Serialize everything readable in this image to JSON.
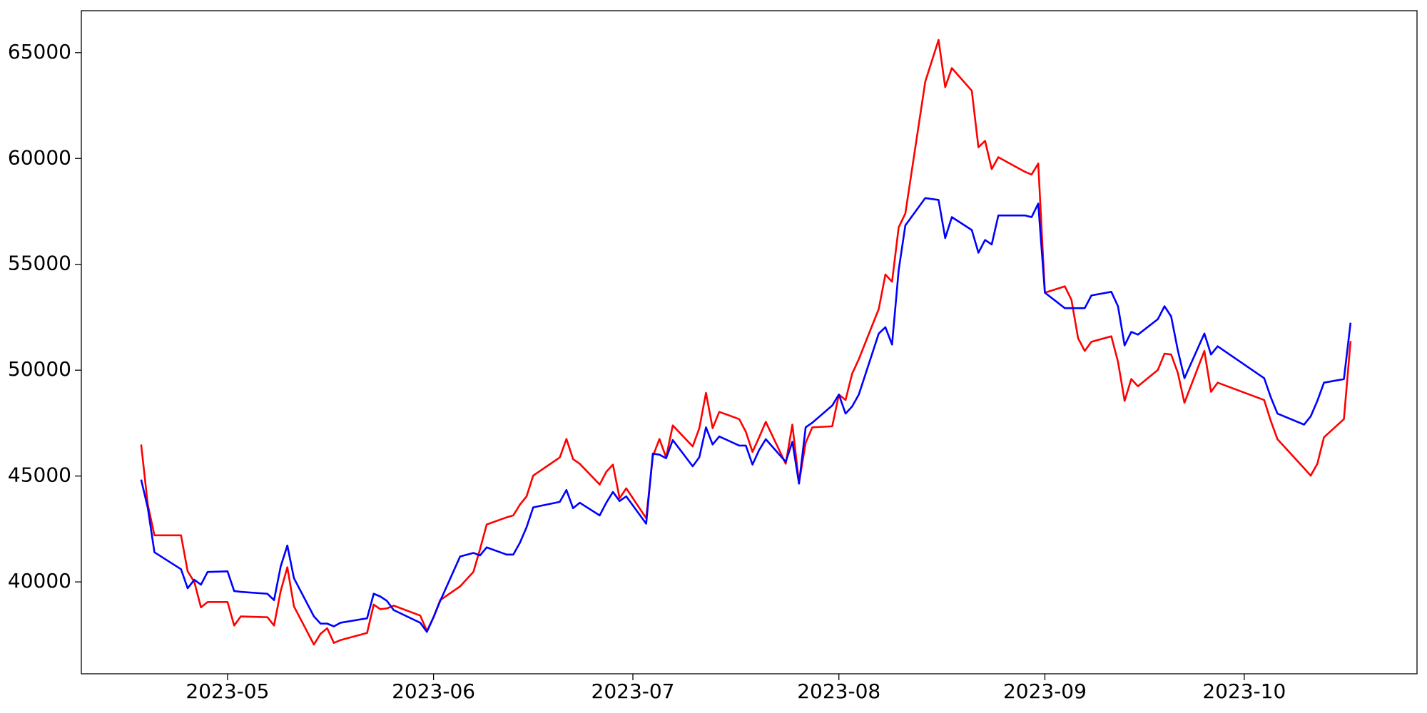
{
  "chart_data": {
    "type": "line",
    "x": [
      "2023-04-18",
      "2023-04-19",
      "2023-04-20",
      "2023-04-24",
      "2023-04-25",
      "2023-04-26",
      "2023-04-27",
      "2023-04-28",
      "2023-05-01",
      "2023-05-02",
      "2023-05-03",
      "2023-05-07",
      "2023-05-08",
      "2023-05-09",
      "2023-05-10",
      "2023-05-11",
      "2023-05-14",
      "2023-05-15",
      "2023-05-16",
      "2023-05-17",
      "2023-05-18",
      "2023-05-22",
      "2023-05-23",
      "2023-05-24",
      "2023-05-25",
      "2023-05-26",
      "2023-05-30",
      "2023-05-31",
      "2023-06-01",
      "2023-06-02",
      "2023-06-05",
      "2023-06-07",
      "2023-06-08",
      "2023-06-09",
      "2023-06-12",
      "2023-06-13",
      "2023-06-14",
      "2023-06-15",
      "2023-06-16",
      "2023-06-20",
      "2023-06-21",
      "2023-06-22",
      "2023-06-23",
      "2023-06-26",
      "2023-06-27",
      "2023-06-28",
      "2023-06-29",
      "2023-06-30",
      "2023-07-03",
      "2023-07-04",
      "2023-07-05",
      "2023-07-06",
      "2023-07-07",
      "2023-07-10",
      "2023-07-11",
      "2023-07-12",
      "2023-07-13",
      "2023-07-14",
      "2023-07-17",
      "2023-07-18",
      "2023-07-19",
      "2023-07-20",
      "2023-07-21",
      "2023-07-24",
      "2023-07-25",
      "2023-07-26",
      "2023-07-27",
      "2023-07-28",
      "2023-07-31",
      "2023-08-01",
      "2023-08-02",
      "2023-08-03",
      "2023-08-04",
      "2023-08-07",
      "2023-08-08",
      "2023-08-09",
      "2023-08-10",
      "2023-08-11",
      "2023-08-14",
      "2023-08-16",
      "2023-08-17",
      "2023-08-18",
      "2023-08-21",
      "2023-08-22",
      "2023-08-23",
      "2023-08-24",
      "2023-08-25",
      "2023-08-29",
      "2023-08-30",
      "2023-08-31",
      "2023-09-01",
      "2023-09-04",
      "2023-09-05",
      "2023-09-06",
      "2023-09-07",
      "2023-09-08",
      "2023-09-11",
      "2023-09-12",
      "2023-09-13",
      "2023-09-14",
      "2023-09-15",
      "2023-09-18",
      "2023-09-19",
      "2023-09-20",
      "2023-09-21",
      "2023-09-22",
      "2023-09-25",
      "2023-09-26",
      "2023-09-27",
      "2023-10-04",
      "2023-10-05",
      "2023-10-06",
      "2023-10-10",
      "2023-10-11",
      "2023-10-12",
      "2023-10-13",
      "2023-10-16",
      "2023-10-17"
    ],
    "series": [
      {
        "color": "red",
        "values": [
          46490,
          43650,
          42200,
          42200,
          40500,
          40000,
          38800,
          39050,
          39050,
          37940,
          38370,
          38330,
          37940,
          39570,
          40690,
          38840,
          37040,
          37550,
          37810,
          37120,
          37250,
          37590,
          38930,
          38710,
          38750,
          38880,
          38410,
          37680,
          38330,
          39140,
          39790,
          40470,
          41550,
          42710,
          43050,
          43140,
          43650,
          44040,
          45020,
          45880,
          46750,
          45800,
          45580,
          44600,
          45200,
          45540,
          43950,
          44420,
          43010,
          45930,
          46750,
          45880,
          47390,
          46400,
          47260,
          48930,
          47260,
          48030,
          47690,
          47090,
          46140,
          46830,
          47560,
          45580,
          47430,
          44680,
          46570,
          47300,
          47350,
          48850,
          48590,
          49840,
          50520,
          52890,
          54520,
          54180,
          56750,
          57400,
          63630,
          65600,
          63370,
          64270,
          63200,
          60530,
          60830,
          59500,
          60060,
          59370,
          59240,
          59760,
          53660,
          53960,
          53320,
          51510,
          50910,
          51340,
          51600,
          50400,
          48550,
          49580,
          49240,
          50010,
          50780,
          50740,
          49880,
          48460,
          50910,
          48980,
          49410,
          48590,
          47600,
          46740,
          45370,
          45020,
          45580,
          46830,
          47690,
          51380
        ]
      },
      {
        "color": "blue",
        "values": [
          44830,
          43500,
          41400,
          40600,
          39700,
          40100,
          39870,
          40470,
          40500,
          39570,
          39530,
          39440,
          39140,
          40730,
          41720,
          40170,
          38370,
          38030,
          38030,
          37900,
          38070,
          38280,
          39440,
          39310,
          39100,
          38670,
          38070,
          37640,
          38330,
          39100,
          41200,
          41370,
          41250,
          41630,
          41290,
          41290,
          41850,
          42580,
          43520,
          43780,
          44340,
          43480,
          43740,
          43140,
          43740,
          44250,
          43820,
          44040,
          42750,
          46060,
          46010,
          45840,
          46700,
          45460,
          45890,
          47300,
          46490,
          46870,
          46440,
          46440,
          45540,
          46230,
          46740,
          45670,
          46620,
          44640,
          47300,
          47520,
          48330,
          48850,
          47950,
          48290,
          48850,
          51730,
          52030,
          51210,
          54730,
          56840,
          58130,
          58040,
          56240,
          57230,
          56620,
          55550,
          56150,
          55940,
          57310,
          57310,
          57230,
          57870,
          53660,
          52930,
          52930,
          52930,
          52930,
          53530,
          53700,
          53020,
          51170,
          51810,
          51680,
          52410,
          53020,
          52540,
          50950,
          49620,
          51730,
          50740,
          51130,
          49620,
          48720,
          47950,
          47430,
          47820,
          48550,
          49410,
          49580,
          52240
        ]
      }
    ],
    "xlim": [
      "2023-04-09",
      "2023-10-27"
    ],
    "xticks": [
      {
        "value": "2023-05-01",
        "label": "2023-05"
      },
      {
        "value": "2023-06-01",
        "label": "2023-06"
      },
      {
        "value": "2023-07-01",
        "label": "2023-07"
      },
      {
        "value": "2023-08-01",
        "label": "2023-08"
      },
      {
        "value": "2023-09-01",
        "label": "2023-09"
      },
      {
        "value": "2023-10-01",
        "label": "2023-10"
      }
    ],
    "ylim": [
      35660,
      66980
    ],
    "yticks": [
      40000,
      45000,
      50000,
      55000,
      60000,
      65000
    ],
    "grid": false
  }
}
